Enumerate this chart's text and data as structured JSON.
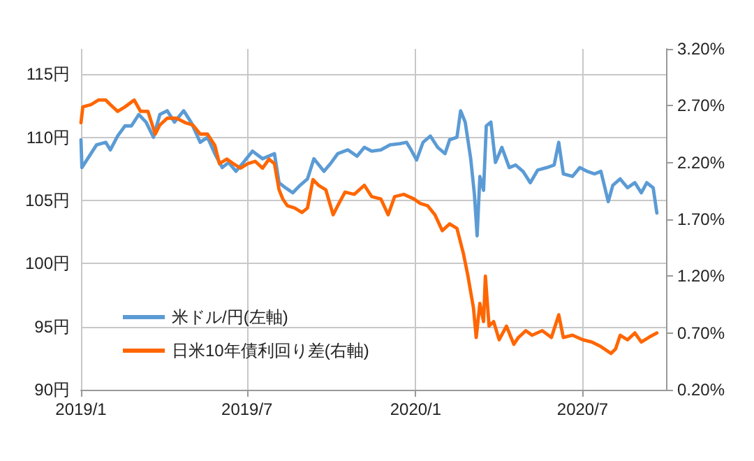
{
  "chart_data": {
    "type": "line",
    "xlim": [
      "2019-01-01",
      "2020-09-30"
    ],
    "xticks": [
      {
        "value": "2019-01-01",
        "label": "2019/1"
      },
      {
        "value": "2019-07-01",
        "label": "2019/7"
      },
      {
        "value": "2020-01-01",
        "label": "2020/1"
      },
      {
        "value": "2020-07-01",
        "label": "2020/7"
      }
    ],
    "ylim": [
      90,
      117
    ],
    "yticks": [
      {
        "value": 90,
        "label": "90円"
      },
      {
        "value": 95,
        "label": "95円"
      },
      {
        "value": 100,
        "label": "100円"
      },
      {
        "value": 105,
        "label": "105円"
      },
      {
        "value": 110,
        "label": "110円"
      },
      {
        "value": 115,
        "label": "115円"
      }
    ],
    "y2lim": [
      0.2,
      3.2
    ],
    "y2ticks": [
      {
        "value": 0.2,
        "label": "0.20%"
      },
      {
        "value": 0.7,
        "label": "0.70%"
      },
      {
        "value": 1.2,
        "label": "1.20%"
      },
      {
        "value": 1.7,
        "label": "1.70%"
      },
      {
        "value": 2.2,
        "label": "2.20%"
      },
      {
        "value": 2.7,
        "label": "2.70%"
      },
      {
        "value": 3.2,
        "label": "3.20%"
      }
    ],
    "grid": true,
    "legend": "bottom left",
    "marker": "none",
    "line_style": "solid",
    "series": [
      {
        "name": "米ドル/円(左軸)",
        "color": "#5b9bd5",
        "x": [
          "2019-01-01",
          "2019-01-02",
          "2019-01-10",
          "2019-01-18",
          "2019-01-28",
          "2019-02-02",
          "2019-02-10",
          "2019-02-18",
          "2019-02-25",
          "2019-03-05",
          "2019-03-13",
          "2019-03-21",
          "2019-03-28",
          "2019-04-05",
          "2019-04-13",
          "2019-04-23",
          "2019-05-01",
          "2019-05-11",
          "2019-05-19",
          "2019-05-27",
          "2019-06-04",
          "2019-06-11",
          "2019-06-19",
          "2019-06-27",
          "2019-07-07",
          "2019-07-18",
          "2019-07-31",
          "2019-08-05",
          "2019-08-12",
          "2019-08-20",
          "2019-08-28",
          "2019-09-05",
          "2019-09-12",
          "2019-09-23",
          "2019-10-01",
          "2019-10-08",
          "2019-10-19",
          "2019-10-29",
          "2019-11-06",
          "2019-11-14",
          "2019-11-24",
          "2019-12-04",
          "2019-12-15",
          "2019-12-22",
          "2019-12-27",
          "2020-01-02",
          "2020-01-09",
          "2020-01-17",
          "2020-01-25",
          "2020-02-02",
          "2020-02-07",
          "2020-02-15",
          "2020-02-19",
          "2020-02-24",
          "2020-03-01",
          "2020-03-05",
          "2020-03-08",
          "2020-03-11",
          "2020-03-15",
          "2020-03-18",
          "2020-03-23",
          "2020-03-28",
          "2020-04-04",
          "2020-04-12",
          "2020-04-19",
          "2020-04-27",
          "2020-05-05",
          "2020-05-13",
          "2020-05-23",
          "2020-05-31",
          "2020-06-05",
          "2020-06-10",
          "2020-06-20",
          "2020-06-28",
          "2020-07-06",
          "2020-07-14",
          "2020-07-21",
          "2020-07-29",
          "2020-08-03",
          "2020-08-11",
          "2020-08-19",
          "2020-08-27",
          "2020-09-03",
          "2020-09-09",
          "2020-09-16",
          "2020-09-20"
        ],
        "values": [
          109.8,
          107.6,
          108.5,
          109.4,
          109.6,
          109.0,
          110.1,
          110.9,
          110.9,
          111.8,
          111.2,
          110.0,
          111.8,
          112.1,
          111.2,
          112.1,
          111.2,
          109.6,
          110.0,
          108.7,
          107.6,
          108.0,
          107.3,
          108.0,
          108.9,
          108.3,
          108.7,
          106.4,
          106.0,
          105.6,
          106.2,
          106.7,
          108.3,
          107.3,
          108.0,
          108.7,
          109.0,
          108.5,
          109.2,
          108.9,
          109.0,
          109.4,
          109.5,
          109.6,
          109.0,
          108.2,
          109.6,
          110.1,
          109.2,
          108.7,
          109.8,
          110.0,
          112.1,
          111.2,
          108.3,
          105.5,
          102.2,
          106.9,
          105.8,
          110.9,
          111.2,
          108.0,
          109.2,
          107.6,
          107.8,
          107.3,
          106.4,
          107.4,
          107.6,
          107.8,
          109.6,
          107.1,
          106.9,
          107.6,
          107.3,
          107.1,
          107.3,
          104.9,
          106.2,
          106.7,
          106.0,
          106.4,
          105.6,
          106.4,
          106.0,
          104.0
        ]
      },
      {
        "name": "日米10年債利回り差(右軸)",
        "color": "#ff6600",
        "axis": "y2",
        "x": [
          "2019-01-01",
          "2019-01-03",
          "2019-01-12",
          "2019-01-20",
          "2019-01-28",
          "2019-02-02",
          "2019-02-10",
          "2019-02-18",
          "2019-02-28",
          "2019-03-07",
          "2019-03-15",
          "2019-03-23",
          "2019-03-28",
          "2019-04-05",
          "2019-04-15",
          "2019-04-25",
          "2019-05-03",
          "2019-05-11",
          "2019-05-19",
          "2019-05-27",
          "2019-06-01",
          "2019-06-09",
          "2019-06-16",
          "2019-06-24",
          "2019-07-02",
          "2019-07-10",
          "2019-07-18",
          "2019-07-25",
          "2019-07-31",
          "2019-08-05",
          "2019-08-09",
          "2019-08-14",
          "2019-08-22",
          "2019-08-30",
          "2019-09-05",
          "2019-09-11",
          "2019-09-17",
          "2019-09-25",
          "2019-10-03",
          "2019-10-08",
          "2019-10-16",
          "2019-10-26",
          "2019-11-06",
          "2019-11-14",
          "2019-11-24",
          "2019-12-02",
          "2019-12-09",
          "2019-12-19",
          "2019-12-30",
          "2020-01-06",
          "2020-01-14",
          "2020-01-22",
          "2020-01-30",
          "2020-02-07",
          "2020-02-15",
          "2020-02-22",
          "2020-02-27",
          "2020-03-04",
          "2020-03-07",
          "2020-03-11",
          "2020-03-15",
          "2020-03-17",
          "2020-03-21",
          "2020-03-26",
          "2020-04-01",
          "2020-04-09",
          "2020-04-17",
          "2020-04-22",
          "2020-04-30",
          "2020-05-07",
          "2020-05-18",
          "2020-05-28",
          "2020-06-05",
          "2020-06-10",
          "2020-06-20",
          "2020-07-01",
          "2020-07-11",
          "2020-07-21",
          "2020-08-01",
          "2020-08-06",
          "2020-08-11",
          "2020-08-19",
          "2020-08-27",
          "2020-09-03",
          "2020-09-11",
          "2020-09-20"
        ],
        "values": [
          2.55,
          2.69,
          2.71,
          2.75,
          2.75,
          2.71,
          2.65,
          2.69,
          2.75,
          2.65,
          2.65,
          2.45,
          2.53,
          2.59,
          2.59,
          2.55,
          2.53,
          2.45,
          2.45,
          2.35,
          2.19,
          2.23,
          2.19,
          2.15,
          2.19,
          2.21,
          2.15,
          2.23,
          2.19,
          1.96,
          1.88,
          1.82,
          1.8,
          1.76,
          1.8,
          2.05,
          2.0,
          1.96,
          1.74,
          1.82,
          1.94,
          1.92,
          2.0,
          1.9,
          1.88,
          1.74,
          1.9,
          1.92,
          1.88,
          1.84,
          1.82,
          1.74,
          1.6,
          1.66,
          1.62,
          1.4,
          1.2,
          0.92,
          0.66,
          0.96,
          0.8,
          1.2,
          0.76,
          0.8,
          0.64,
          0.76,
          0.6,
          0.66,
          0.72,
          0.68,
          0.72,
          0.66,
          0.86,
          0.66,
          0.68,
          0.64,
          0.62,
          0.58,
          0.52,
          0.56,
          0.68,
          0.64,
          0.7,
          0.62,
          0.66,
          0.7
        ]
      }
    ]
  }
}
